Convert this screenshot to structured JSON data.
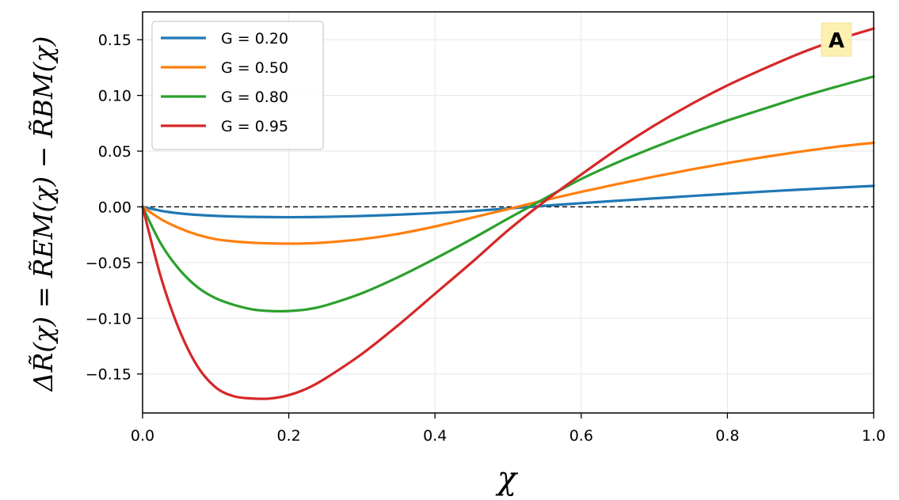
{
  "chart_data": {
    "type": "line",
    "title": "",
    "xlabel": "χ",
    "ylabel": "ΔR̃(χ) = R̃EM(χ) − R̃BM(χ)",
    "xlim": [
      0.0,
      1.0
    ],
    "ylim": [
      -0.185,
      0.175
    ],
    "xticks": [
      "0.0",
      "0.2",
      "0.4",
      "0.6",
      "0.8",
      "1.0"
    ],
    "yticks": [
      "0.15",
      "0.10",
      "0.05",
      "0.00",
      "−0.05",
      "−0.10",
      "−0.15"
    ],
    "grid": true,
    "legend_position": "top-left",
    "reference_line": {
      "y": 0.0,
      "style": "dashed",
      "color": "#000000"
    },
    "panel_label": "A",
    "x": [
      0.0,
      0.025,
      0.05,
      0.075,
      0.1,
      0.125,
      0.15,
      0.175,
      0.2,
      0.225,
      0.25,
      0.3,
      0.35,
      0.4,
      0.45,
      0.5,
      0.55,
      0.6,
      0.65,
      0.7,
      0.75,
      0.8,
      0.85,
      0.9,
      0.95,
      1.0
    ],
    "series": [
      {
        "name": "G = 0.20",
        "color": "#1f77b4",
        "values": [
          0.0,
          -0.0035,
          -0.0058,
          -0.0072,
          -0.0081,
          -0.0087,
          -0.009,
          -0.0092,
          -0.0093,
          -0.0092,
          -0.009,
          -0.0082,
          -0.007,
          -0.0055,
          -0.0037,
          -0.0015,
          0.001,
          0.0033,
          0.0055,
          0.0076,
          0.0097,
          0.0117,
          0.0137,
          0.0155,
          0.0172,
          0.0188
        ]
      },
      {
        "name": "G = 0.50",
        "color": "#ff7f0e",
        "values": [
          0.0,
          -0.011,
          -0.019,
          -0.025,
          -0.029,
          -0.031,
          -0.0322,
          -0.0328,
          -0.033,
          -0.0328,
          -0.032,
          -0.029,
          -0.0242,
          -0.0176,
          -0.0098,
          -0.002,
          0.006,
          0.0135,
          0.0205,
          0.0272,
          0.0335,
          0.0393,
          0.0447,
          0.0496,
          0.054,
          0.0575
        ]
      },
      {
        "name": "G = 0.80",
        "color": "#2ca02c",
        "values": [
          0.0,
          -0.033,
          -0.056,
          -0.072,
          -0.082,
          -0.088,
          -0.092,
          -0.0935,
          -0.0935,
          -0.092,
          -0.0885,
          -0.0775,
          -0.063,
          -0.0465,
          -0.029,
          -0.0105,
          0.0075,
          0.025,
          0.04,
          0.0535,
          0.066,
          0.0775,
          0.088,
          0.0985,
          0.108,
          0.117
        ]
      },
      {
        "name": "G = 0.95",
        "color": "#d62728",
        "values": [
          0.0,
          -0.063,
          -0.11,
          -0.143,
          -0.162,
          -0.17,
          -0.172,
          -0.172,
          -0.169,
          -0.163,
          -0.154,
          -0.132,
          -0.106,
          -0.078,
          -0.05,
          -0.021,
          0.005,
          0.029,
          0.052,
          0.073,
          0.092,
          0.109,
          0.124,
          0.138,
          0.15,
          0.16
        ]
      }
    ]
  }
}
